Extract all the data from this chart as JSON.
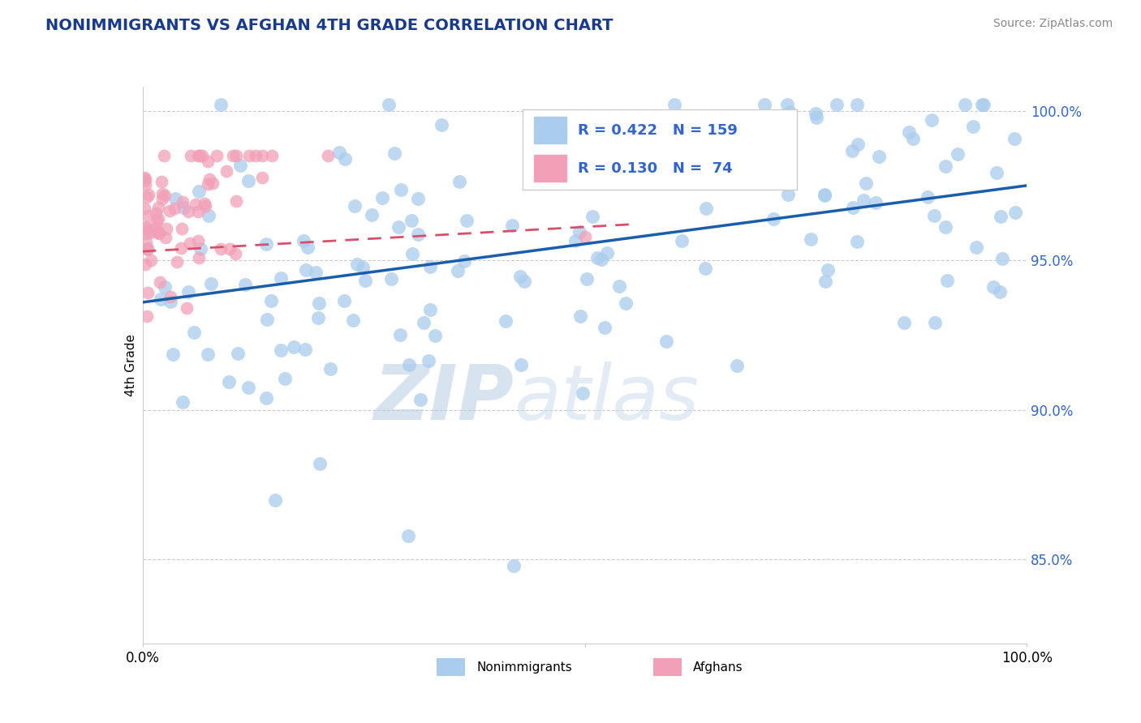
{
  "title": "NONIMMIGRANTS VS AFGHAN 4TH GRADE CORRELATION CHART",
  "source_text": "Source: ZipAtlas.com",
  "ylabel": "4th Grade",
  "watermark_zip": "ZIP",
  "watermark_atlas": "atlas",
  "xlim": [
    0.0,
    1.0
  ],
  "ylim": [
    0.822,
    1.008
  ],
  "yticks": [
    0.85,
    0.9,
    0.95,
    1.0
  ],
  "ytick_labels": [
    "85.0%",
    "90.0%",
    "95.0%",
    "100.0%"
  ],
  "blue_color": "#aacced",
  "pink_color": "#f2a0b8",
  "blue_line_color": "#1a5dab",
  "pink_line_color": "#d94f6a",
  "title_color": "#1a3a8a",
  "axis_label_color": "#3366cc",
  "source_color": "#888888",
  "grid_color": "#cccccc",
  "background_color": "#ffffff",
  "blue_line_x": [
    0.0,
    1.0
  ],
  "blue_line_y": [
    0.936,
    0.975
  ],
  "pink_line_x": [
    0.0,
    0.55
  ],
  "pink_line_y": [
    0.953,
    0.962
  ]
}
